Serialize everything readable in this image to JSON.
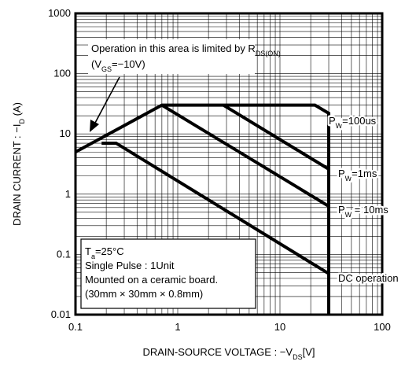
{
  "chart_data": {
    "type": "line",
    "xlabel": [
      "DRAIN-SOURCE VOLTAGE : −V",
      "DS",
      "[V]"
    ],
    "ylabel": [
      "DRAIN CURRENT : −I",
      "D",
      " (A)"
    ],
    "log_x": true,
    "log_y": true,
    "grid": true,
    "xlim": [
      0.1,
      100
    ],
    "xticks": [
      0.1,
      1,
      10,
      100
    ],
    "ylim": [
      0.01,
      1000
    ],
    "yticks": [
      0.01,
      0.1,
      1,
      10,
      100,
      1000
    ],
    "color": "#000000",
    "series": [
      {
        "x": [
          0.1,
          0.7,
          22,
          30,
          30
        ],
        "values": [
          5,
          30,
          30,
          22,
          0.01
        ]
      },
      {
        "x": [
          2.8,
          30
        ],
        "values": [
          30,
          2.6
        ]
      },
      {
        "x": [
          0.7,
          30
        ],
        "values": [
          30,
          0.63
        ]
      },
      {
        "x": [
          0.18,
          0.25,
          30
        ],
        "values": [
          7,
          7,
          0.048
        ]
      }
    ],
    "curve_labels": [
      [
        "P",
        "W",
        "=100us"
      ],
      [
        "P",
        "W",
        "=1ms"
      ],
      [
        "P",
        "W",
        " = 10ms"
      ],
      [
        "DC operation"
      ]
    ],
    "annotation": [
      [
        "Operation in this area is limited by R",
        "DS(ON)"
      ],
      [
        "(V",
        "GS",
        "=−10V)"
      ]
    ],
    "conditions": [
      [
        "T",
        "a",
        "=25°C"
      ],
      [
        "Single Pulse : 1Unit"
      ],
      [
        "Mounted on a ceramic board."
      ],
      [
        "(30mm × 30mm × 0.8mm)"
      ]
    ]
  }
}
